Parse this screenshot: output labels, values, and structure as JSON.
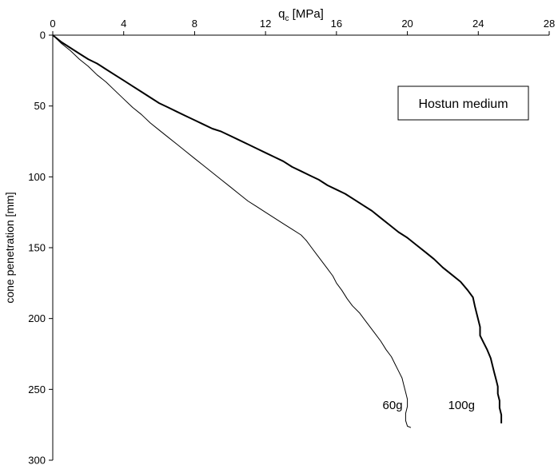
{
  "chart_data": {
    "type": "line",
    "xlabel_main": "q",
    "xlabel_sub": "c",
    "xlabel_unit": " [MPa]",
    "ylabel": "cone penetration [mm]",
    "xlim": [
      0,
      28
    ],
    "ylim": [
      300,
      0
    ],
    "x_axis_position": "top",
    "y_inverted": true,
    "grid": false,
    "x_ticks": [
      "0",
      "4",
      "8",
      "12",
      "16",
      "20",
      "24",
      "28"
    ],
    "y_ticks": [
      "0",
      "50",
      "100",
      "150",
      "200",
      "250",
      "300"
    ],
    "legend_box": "Hostun medium",
    "series": [
      {
        "name": "60g",
        "color": "#000000",
        "line_width": 1,
        "points": [
          [
            0,
            0
          ],
          [
            0.5,
            6
          ],
          [
            1.0,
            11
          ],
          [
            1.5,
            17
          ],
          [
            2.0,
            22
          ],
          [
            2.5,
            28
          ],
          [
            3.0,
            33
          ],
          [
            3.5,
            39
          ],
          [
            4.0,
            45
          ],
          [
            4.5,
            51
          ],
          [
            5.0,
            56
          ],
          [
            5.5,
            62
          ],
          [
            6.0,
            67
          ],
          [
            6.5,
            72
          ],
          [
            7.0,
            77
          ],
          [
            7.5,
            82
          ],
          [
            8.0,
            87
          ],
          [
            8.5,
            92
          ],
          [
            9.0,
            97
          ],
          [
            9.5,
            102
          ],
          [
            10.0,
            107
          ],
          [
            10.5,
            112
          ],
          [
            11.0,
            117
          ],
          [
            11.5,
            121
          ],
          [
            12.0,
            125
          ],
          [
            12.5,
            129
          ],
          [
            13.0,
            133
          ],
          [
            13.5,
            137
          ],
          [
            14.0,
            141
          ],
          [
            14.3,
            145
          ],
          [
            14.6,
            150
          ],
          [
            14.9,
            155
          ],
          [
            15.2,
            160
          ],
          [
            15.5,
            165
          ],
          [
            15.8,
            170
          ],
          [
            16.0,
            175
          ],
          [
            16.3,
            180
          ],
          [
            16.6,
            186
          ],
          [
            16.9,
            191
          ],
          [
            17.3,
            196
          ],
          [
            17.6,
            201
          ],
          [
            17.9,
            206
          ],
          [
            18.2,
            211
          ],
          [
            18.5,
            216
          ],
          [
            18.8,
            222
          ],
          [
            19.1,
            227
          ],
          [
            19.3,
            232
          ],
          [
            19.5,
            237
          ],
          [
            19.7,
            242
          ],
          [
            19.8,
            247
          ],
          [
            19.9,
            252
          ],
          [
            20.0,
            257
          ],
          [
            20.0,
            262
          ],
          [
            19.9,
            267
          ],
          [
            19.9,
            272
          ],
          [
            20.0,
            276
          ],
          [
            20.2,
            277
          ]
        ]
      },
      {
        "name": "100g",
        "color": "#000000",
        "line_width": 2,
        "points": [
          [
            0,
            0
          ],
          [
            0.5,
            5
          ],
          [
            1.0,
            9
          ],
          [
            1.5,
            13
          ],
          [
            2.0,
            17
          ],
          [
            2.5,
            20
          ],
          [
            3.0,
            24
          ],
          [
            3.5,
            28
          ],
          [
            4.0,
            32
          ],
          [
            4.5,
            36
          ],
          [
            5.0,
            40
          ],
          [
            5.5,
            44
          ],
          [
            6.0,
            48
          ],
          [
            6.5,
            51
          ],
          [
            7.0,
            54
          ],
          [
            7.5,
            57
          ],
          [
            8.0,
            60
          ],
          [
            8.5,
            63
          ],
          [
            9.0,
            66
          ],
          [
            9.5,
            68
          ],
          [
            10.0,
            71
          ],
          [
            10.5,
            74
          ],
          [
            11.0,
            77
          ],
          [
            11.5,
            80
          ],
          [
            12.0,
            83
          ],
          [
            12.5,
            86
          ],
          [
            13.0,
            89
          ],
          [
            13.5,
            93
          ],
          [
            14.0,
            96
          ],
          [
            14.5,
            99
          ],
          [
            15.0,
            102
          ],
          [
            15.5,
            106
          ],
          [
            16.0,
            109
          ],
          [
            16.5,
            112
          ],
          [
            17.0,
            116
          ],
          [
            17.5,
            120
          ],
          [
            18.0,
            124
          ],
          [
            18.5,
            129
          ],
          [
            19.0,
            134
          ],
          [
            19.5,
            139
          ],
          [
            20.0,
            143
          ],
          [
            20.5,
            148
          ],
          [
            21.0,
            153
          ],
          [
            21.5,
            158
          ],
          [
            22.0,
            164
          ],
          [
            22.5,
            169
          ],
          [
            23.0,
            174
          ],
          [
            23.4,
            180
          ],
          [
            23.7,
            185
          ],
          [
            23.8,
            191
          ],
          [
            23.9,
            196
          ],
          [
            24.0,
            201
          ],
          [
            24.1,
            206
          ],
          [
            24.1,
            212
          ],
          [
            24.3,
            217
          ],
          [
            24.5,
            222
          ],
          [
            24.7,
            228
          ],
          [
            24.8,
            233
          ],
          [
            24.9,
            238
          ],
          [
            25.0,
            243
          ],
          [
            25.1,
            248
          ],
          [
            25.1,
            253
          ],
          [
            25.2,
            258
          ],
          [
            25.2,
            263
          ],
          [
            25.3,
            268
          ],
          [
            25.3,
            274
          ]
        ]
      }
    ],
    "annotations": [
      {
        "text": "60g",
        "x": 18.6,
        "y": 264
      },
      {
        "text": "100g",
        "x": 22.3,
        "y": 264
      }
    ]
  }
}
